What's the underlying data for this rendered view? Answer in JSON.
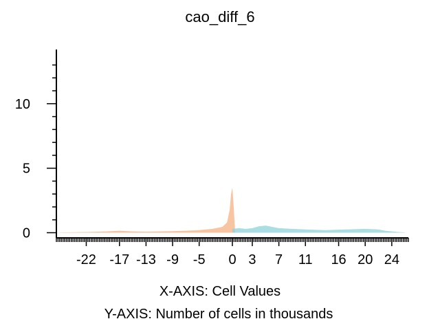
{
  "chart_data": {
    "type": "area",
    "title": "cao_diff_6",
    "xlabel": "X-AXIS: Cell Values",
    "ylabel": "Y-AXIS: Number of cells in thousands",
    "x_ticks": [
      -22,
      -17,
      -13,
      -9,
      -5,
      0,
      3,
      7,
      11,
      16,
      20,
      24
    ],
    "y_ticks": [
      0,
      5,
      10
    ],
    "xlim": [
      -26.5,
      26.5
    ],
    "ylim": [
      -0.4,
      14.2
    ],
    "grid": false,
    "legend": "none",
    "series": [
      {
        "color": "#f4b183",
        "points": [
          [
            -26,
            0.02
          ],
          [
            -22,
            0.05
          ],
          [
            -19,
            0.1
          ],
          [
            -17,
            0.15
          ],
          [
            -15,
            0.1
          ],
          [
            -13,
            0.08
          ],
          [
            -11,
            0.1
          ],
          [
            -9,
            0.12
          ],
          [
            -7,
            0.15
          ],
          [
            -5,
            0.2
          ],
          [
            -3,
            0.3
          ],
          [
            -1.5,
            0.45
          ],
          [
            -0.8,
            0.8
          ],
          [
            -0.4,
            1.8
          ],
          [
            -0.2,
            3.0
          ],
          [
            0,
            3.5
          ],
          [
            0.2,
            2.0
          ],
          [
            0.4,
            0.2
          ]
        ]
      },
      {
        "color": "#8fd3d8",
        "points": [
          [
            0,
            0.3
          ],
          [
            1,
            0.35
          ],
          [
            2,
            0.3
          ],
          [
            3,
            0.35
          ],
          [
            4,
            0.5
          ],
          [
            5,
            0.55
          ],
          [
            6,
            0.45
          ],
          [
            7,
            0.35
          ],
          [
            9,
            0.3
          ],
          [
            11,
            0.25
          ],
          [
            14,
            0.2
          ],
          [
            17,
            0.25
          ],
          [
            20,
            0.3
          ],
          [
            22,
            0.25
          ],
          [
            23,
            0.15
          ],
          [
            25,
            0.05
          ],
          [
            26,
            0.02
          ]
        ]
      }
    ]
  }
}
